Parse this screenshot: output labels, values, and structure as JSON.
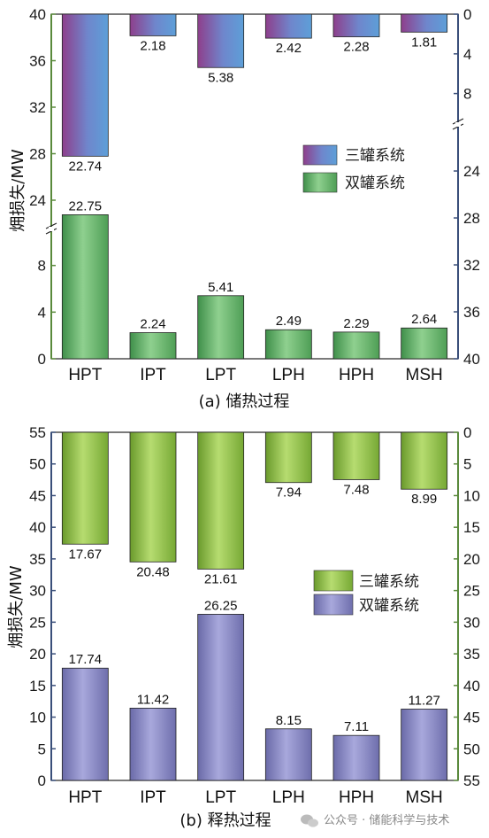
{
  "chart_data": [
    {
      "type": "bar",
      "caption": "(a) 储热过程",
      "ylabel": "㶲损失/MW",
      "categories": [
        "HPT",
        "IPT",
        "LPT",
        "LPH",
        "HPH",
        "MSH"
      ],
      "left_axis_ticks": [
        "40",
        "36",
        "32",
        "28",
        "24",
        "8",
        "4",
        "0"
      ],
      "right_axis_ticks": [
        "0",
        "4",
        "8",
        "24",
        "28",
        "32",
        "36",
        "40"
      ],
      "broken_axis": true,
      "series": [
        {
          "name": "三罐系统",
          "values": [
            22.74,
            2.18,
            5.38,
            2.42,
            2.28,
            1.81
          ],
          "labels": [
            "22.74",
            "2.18",
            "5.38",
            "2.42",
            "2.28",
            "1.81"
          ],
          "direction": "down-from-top",
          "axis": "right",
          "color": "#6f7fc8"
        },
        {
          "name": "双罐系统",
          "values": [
            22.75,
            2.24,
            5.41,
            2.49,
            2.29,
            2.64
          ],
          "labels": [
            "22.75",
            "2.24",
            "5.41",
            "2.49",
            "2.29",
            "2.64"
          ],
          "direction": "up-from-bottom",
          "axis": "left",
          "color": "#6fbf6f"
        }
      ],
      "legend": "right-middle",
      "left_axis_color": "#5a8a3c",
      "right_axis_color": "#3a4f7a"
    },
    {
      "type": "bar",
      "caption": "(b) 释热过程",
      "ylabel": "㶲损失/MW",
      "categories": [
        "HPT",
        "IPT",
        "LPT",
        "LPH",
        "HPH",
        "MSH"
      ],
      "left_axis_ticks": [
        "55",
        "50",
        "45",
        "40",
        "35",
        "30",
        "25",
        "20",
        "15",
        "10",
        "5",
        "0"
      ],
      "right_axis_ticks": [
        "0",
        "5",
        "10",
        "15",
        "20",
        "25",
        "30",
        "35",
        "40",
        "45",
        "50",
        "55"
      ],
      "ylim": [
        0,
        55
      ],
      "series": [
        {
          "name": "三罐系统",
          "values": [
            17.67,
            20.48,
            21.61,
            7.94,
            7.48,
            8.99
          ],
          "labels": [
            "17.67",
            "20.48",
            "21.61",
            "7.94",
            "7.48",
            "8.99"
          ],
          "direction": "down-from-top",
          "axis": "right",
          "color": "#8bc34a"
        },
        {
          "name": "双罐系统",
          "values": [
            17.74,
            11.42,
            26.25,
            8.15,
            7.11,
            11.27
          ],
          "labels": [
            "17.74",
            "11.42",
            "26.25",
            "8.15",
            "7.11",
            "11.27"
          ],
          "direction": "up-from-bottom",
          "axis": "left",
          "color": "#8080c0"
        }
      ],
      "legend": "right-middle",
      "left_axis_color": "#3a4f7a",
      "right_axis_color": "#5a8a3c"
    }
  ],
  "watermark": "公众号 · 储能科学与技术",
  "watermark_icon": "wechat-icon"
}
